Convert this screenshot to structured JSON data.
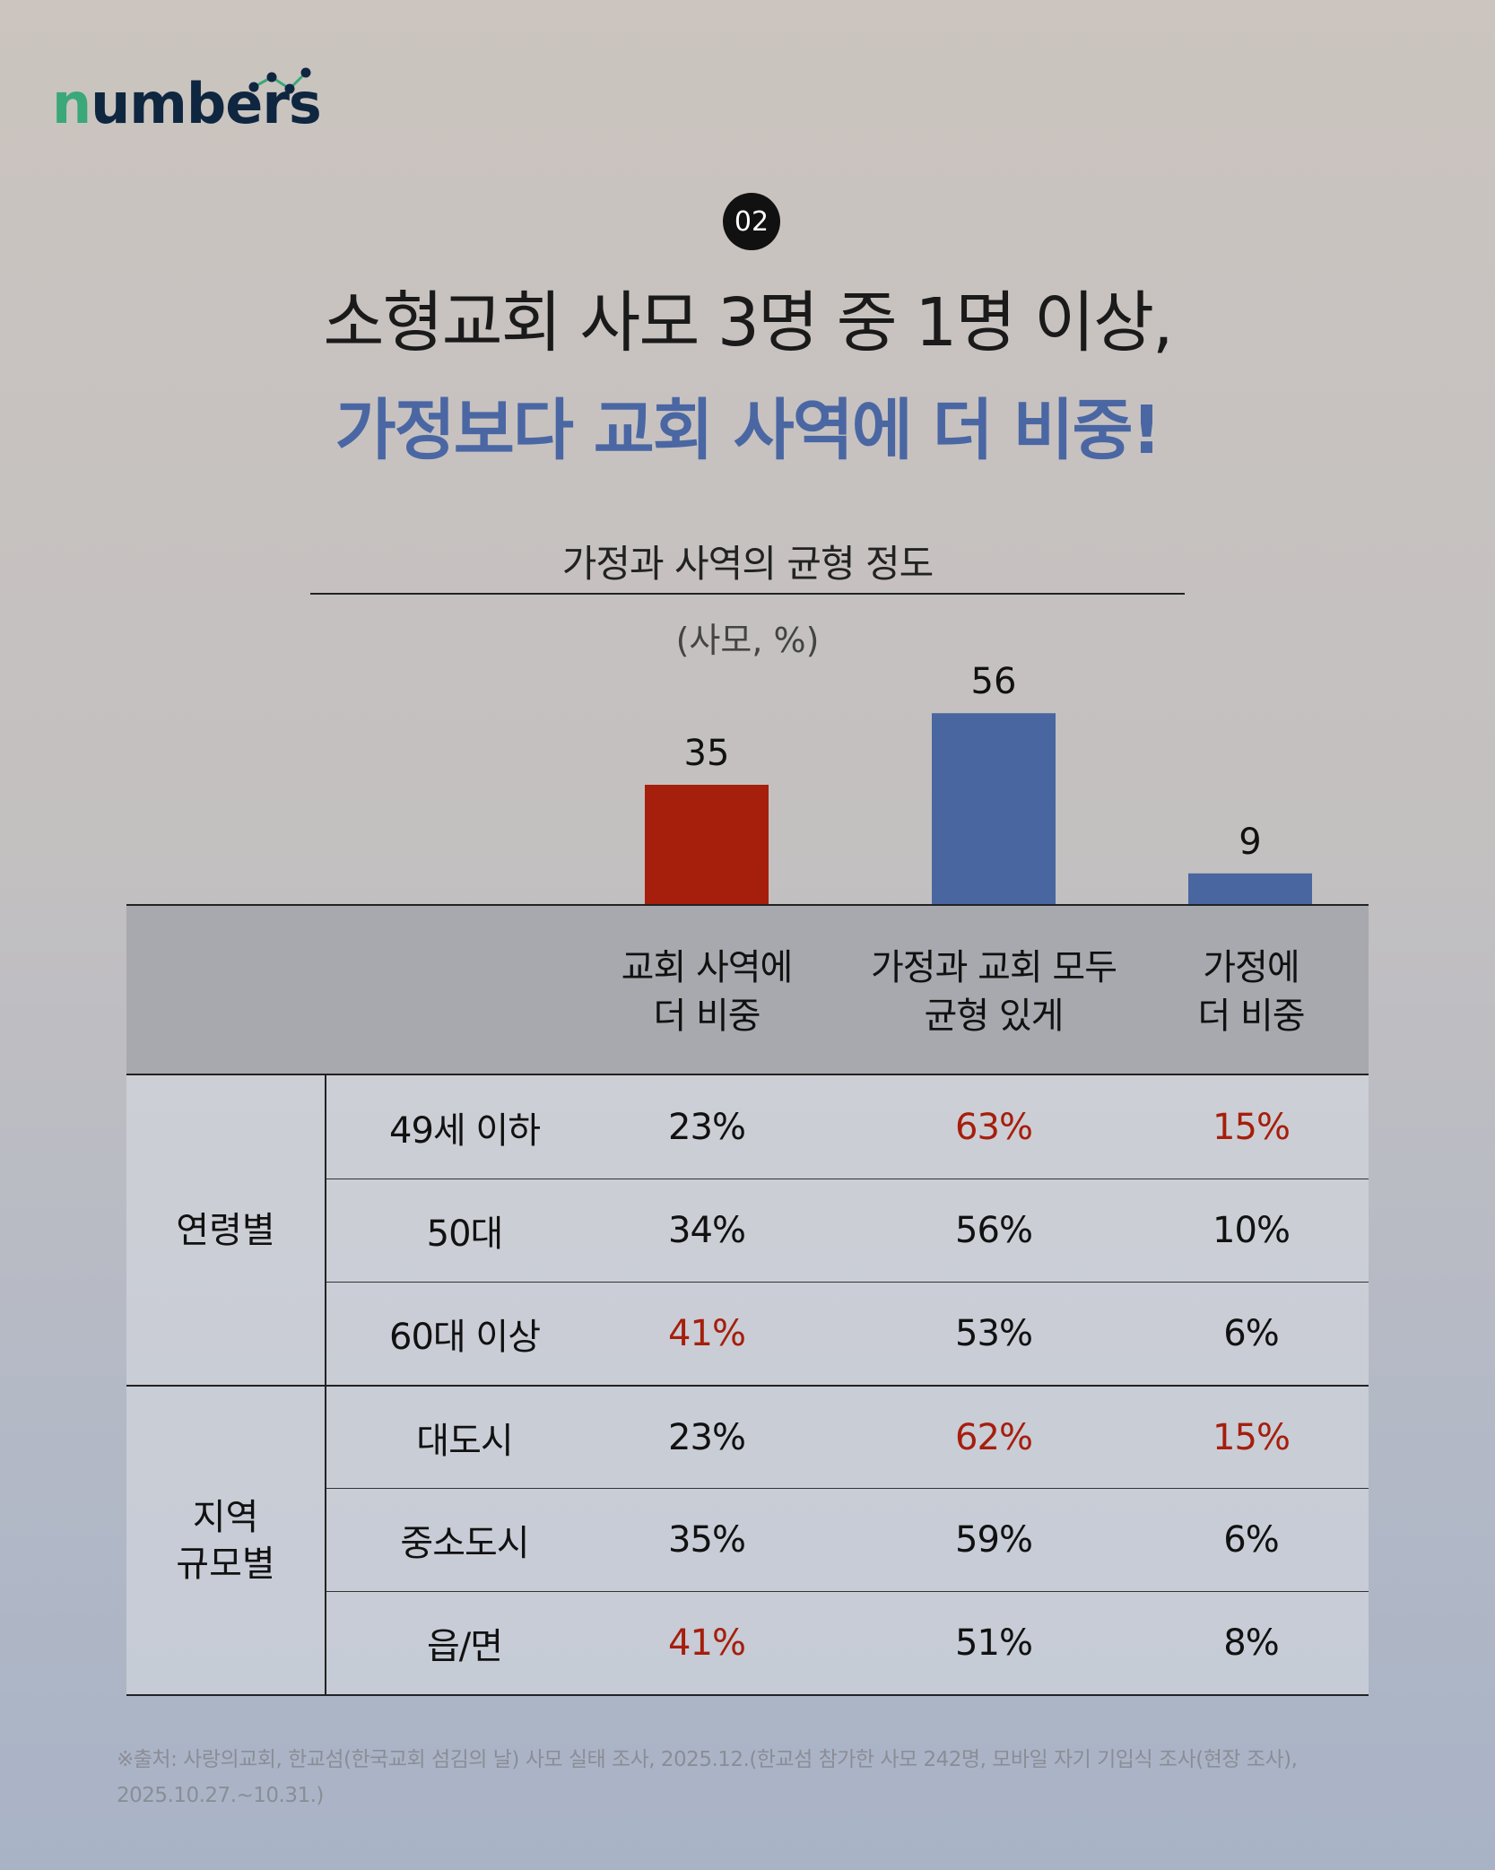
{
  "logo": {
    "text": "numbers"
  },
  "badge": "02",
  "title": {
    "line1": "소형교회 사모 3명 중 1명 이상,",
    "line2": "가정보다 교회 사역에 더 비중!"
  },
  "colors": {
    "red": "#a61e0c",
    "blue": "#4a66a0",
    "highlight_text": "#a61e0c"
  },
  "chart_data": {
    "type": "bar",
    "title": "가정과 사역의 균형 정도",
    "unit": "(사모, %)",
    "categories": [
      "교회 사역에 더 비중",
      "가정과 교회 모두 균형 있게",
      "가정에 더 비중"
    ],
    "values": [
      35,
      56,
      9
    ],
    "bar_colors": [
      "#a61e0c",
      "#4a66a0",
      "#4a66a0"
    ],
    "value_labels": [
      "35",
      "56",
      "9"
    ],
    "ylim": [
      0,
      60
    ]
  },
  "table": {
    "headers": [
      [
        "교회 사역에",
        "더 비중"
      ],
      [
        "가정과 교회 모두",
        "균형 있게"
      ],
      [
        "가정에",
        "더 비중"
      ]
    ],
    "groups": [
      {
        "label": [
          "연령별"
        ],
        "rows": [
          {
            "label": "49세 이하",
            "values": [
              "23%",
              "63%",
              "15%"
            ],
            "highlight": [
              false,
              true,
              true
            ]
          },
          {
            "label": "50대",
            "values": [
              "34%",
              "56%",
              "10%"
            ],
            "highlight": [
              false,
              false,
              false
            ]
          },
          {
            "label": "60대 이상",
            "values": [
              "41%",
              "53%",
              "6%"
            ],
            "highlight": [
              true,
              false,
              false
            ]
          }
        ]
      },
      {
        "label": [
          "지역",
          "규모별"
        ],
        "rows": [
          {
            "label": "대도시",
            "values": [
              "23%",
              "62%",
              "15%"
            ],
            "highlight": [
              false,
              true,
              true
            ]
          },
          {
            "label": "중소도시",
            "values": [
              "35%",
              "59%",
              "6%"
            ],
            "highlight": [
              false,
              false,
              false
            ]
          },
          {
            "label": "읍/면",
            "values": [
              "41%",
              "51%",
              "8%"
            ],
            "highlight": [
              true,
              false,
              false
            ]
          }
        ]
      }
    ]
  },
  "footer": {
    "line1": "※출처: 사랑의교회, 한교섬(한국교회 섬김의 날) 사모 실태 조사, 2025.12.(한교섬 참가한 사모 242명, 모바일 자기 기입식 조사(현장 조사),",
    "line2": "2025.10.27.~10.31.)"
  }
}
